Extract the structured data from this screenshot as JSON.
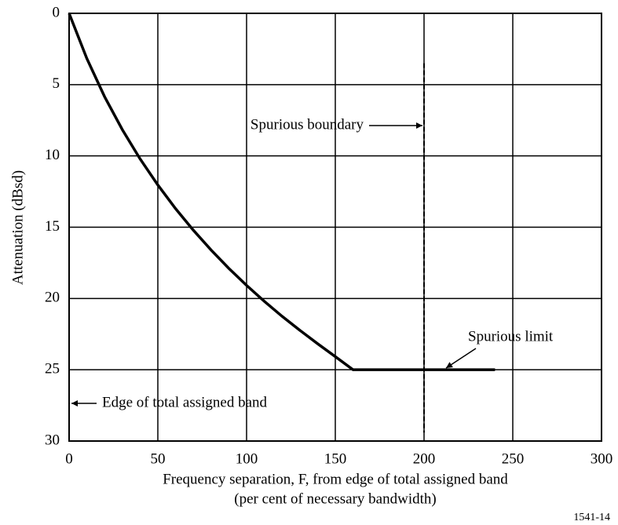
{
  "chart_data": {
    "type": "line",
    "ylabel": "Attenuation (dBsd)",
    "xlabel": [
      "Frequency separation, F, from edge of total assigned band",
      "(per cent of necessary bandwidth)"
    ],
    "xlim": [
      0,
      300
    ],
    "xticks": [
      0,
      50,
      100,
      150,
      200,
      250,
      300
    ],
    "ylim": [
      0,
      30
    ],
    "yticks": [
      0,
      5,
      10,
      15,
      20,
      25,
      30
    ],
    "y_inverted": true,
    "grid": true,
    "series": [
      {
        "color": "#000000",
        "style": "solid",
        "x": [
          0,
          10,
          20,
          30,
          40,
          50,
          60,
          70,
          80,
          90,
          100,
          110,
          120,
          130,
          140,
          150,
          160,
          240
        ],
        "values": [
          0,
          3.17,
          5.85,
          8.16,
          10.21,
          12.04,
          13.7,
          15.21,
          16.6,
          17.89,
          19.08,
          20.2,
          21.25,
          22.23,
          23.17,
          24.08,
          25,
          25
        ]
      },
      {
        "color": "#000000",
        "style": "dashed",
        "x": [
          200,
          200
        ],
        "values": [
          3.5,
          29.4
        ]
      }
    ],
    "annotations": [
      "Spurious boundary",
      "Spurious limit",
      "Edge of total assigned band"
    ],
    "figure_id": "1541-14"
  }
}
